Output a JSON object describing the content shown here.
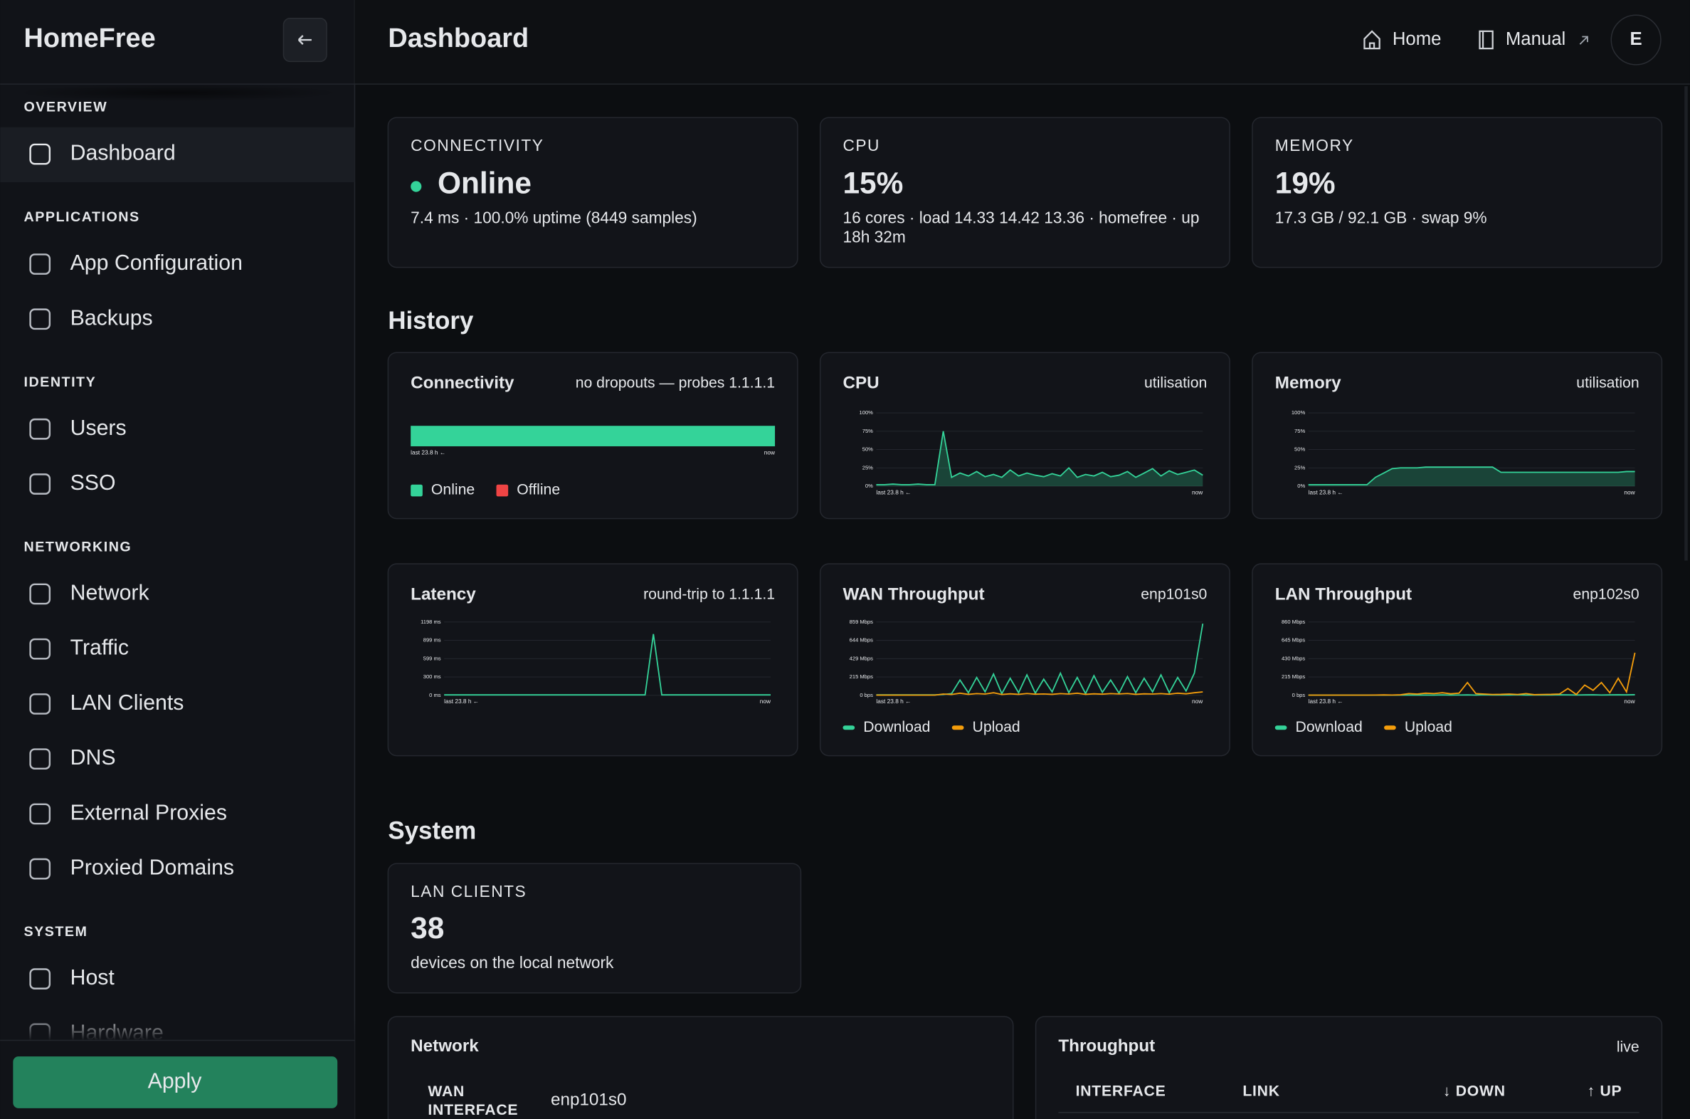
{
  "sidebar": {
    "brand": "HomeFree",
    "sections": [
      {
        "title": "OVERVIEW",
        "items": [
          {
            "label": "Dashboard",
            "active": true
          }
        ]
      },
      {
        "title": "APPLICATIONS",
        "items": [
          {
            "label": "App Configuration"
          },
          {
            "label": "Backups"
          }
        ]
      },
      {
        "title": "IDENTITY",
        "items": [
          {
            "label": "Users"
          },
          {
            "label": "SSO"
          }
        ]
      },
      {
        "title": "NETWORKING",
        "items": [
          {
            "label": "Network"
          },
          {
            "label": "Traffic"
          },
          {
            "label": "LAN Clients"
          },
          {
            "label": "DNS"
          },
          {
            "label": "External Proxies"
          },
          {
            "label": "Proxied Domains"
          }
        ]
      },
      {
        "title": "SYSTEM",
        "items": [
          {
            "label": "Host"
          },
          {
            "label": "Hardware"
          }
        ]
      }
    ],
    "apply": "Apply"
  },
  "header": {
    "title": "Dashboard",
    "links": [
      "Home",
      "Manual"
    ],
    "avatar": "E"
  },
  "stats": [
    {
      "label": "CONNECTIVITY",
      "value": "Online",
      "color": "#34d399",
      "detail": "7.4 ms · 100.0% uptime (8449 samples)"
    },
    {
      "label": "CPU",
      "value": "15%",
      "detail": "16 cores · load 14.33 14.42 13.36 · homefree · up 18h 32m"
    },
    {
      "label": "MEMORY",
      "value": "19%",
      "detail": "17.3 GB / 92.1 GB · swap 9%"
    }
  ],
  "history": {
    "title": "History",
    "panels": [
      {
        "title": "Connectivity",
        "subtitle": "no dropouts — probes 1.1.1.1",
        "chart": {
          "type": "bar",
          "x_labels": [
            "last 23.8 h ←",
            "now"
          ],
          "series": [
            {
              "name": "Online",
              "color": "#34d399",
              "values": [
                100
              ]
            },
            {
              "name": "Offline",
              "color": "#ef4444",
              "values": [
                0
              ]
            }
          ]
        }
      },
      {
        "title": "CPU",
        "subtitle": "utilisation",
        "chart": {
          "type": "area",
          "x_labels": [
            "last 23.8 h ←",
            "now"
          ],
          "ylim": [
            0,
            100
          ],
          "yticks": [
            {
              "value": 0,
              "label": "0%"
            },
            {
              "value": 25,
              "label": "25%"
            },
            {
              "value": 50,
              "label": "50%"
            },
            {
              "value": 75,
              "label": "75%"
            },
            {
              "value": 100,
              "label": "100%"
            }
          ],
          "series": [
            {
              "color": "#34d399",
              "values": [
                2,
                2,
                3,
                2,
                2,
                3,
                2,
                2,
                75,
                12,
                18,
                14,
                20,
                13,
                16,
                12,
                22,
                14,
                18,
                15,
                13,
                17,
                14,
                25,
                12,
                16,
                14,
                19,
                13,
                15,
                20,
                12,
                18,
                24,
                14,
                21,
                16,
                19,
                22,
                15
              ]
            }
          ]
        }
      },
      {
        "title": "Memory",
        "subtitle": "utilisation",
        "chart": {
          "type": "area",
          "x_labels": [
            "last 23.8 h ←",
            "now"
          ],
          "ylim": [
            0,
            100
          ],
          "yticks": [
            {
              "value": 0,
              "label": "0%"
            },
            {
              "value": 25,
              "label": "25%"
            },
            {
              "value": 50,
              "label": "50%"
            },
            {
              "value": 75,
              "label": "75%"
            },
            {
              "value": 100,
              "label": "100%"
            }
          ],
          "series": [
            {
              "color": "#34d399",
              "values": [
                2,
                2,
                2,
                2,
                2,
                2,
                2,
                2,
                12,
                18,
                24,
                25,
                25,
                25,
                26,
                26,
                26,
                26,
                26,
                26,
                26,
                26,
                26,
                19,
                19,
                19,
                19,
                19,
                19,
                19,
                19,
                19,
                19,
                19,
                19,
                19,
                19,
                19,
                20,
                20
              ]
            }
          ]
        }
      },
      {
        "title": "Latency",
        "subtitle": "round-trip to 1.1.1.1",
        "chart": {
          "type": "line",
          "x_labels": [
            "last 23.8 h ←",
            "now"
          ],
          "ylim": [
            0,
            1198
          ],
          "yticks": [
            {
              "value": 0,
              "label": "0 ms"
            },
            {
              "value": 300,
              "label": "300 ms"
            },
            {
              "value": 599,
              "label": "599 ms"
            },
            {
              "value": 899,
              "label": "899 ms"
            },
            {
              "value": 1198,
              "label": "1198 ms"
            }
          ],
          "series": [
            {
              "color": "#34d399",
              "values": [
                7,
                7,
                7,
                7,
                7,
                7,
                7,
                7,
                7,
                7,
                7,
                7,
                7,
                7,
                7,
                7,
                7,
                7,
                7,
                7,
                7,
                7,
                7,
                7,
                7,
                1000,
                7,
                7,
                7,
                7,
                7,
                7,
                7,
                7,
                7,
                7,
                7,
                7,
                7,
                7
              ]
            }
          ]
        }
      },
      {
        "title": "WAN Throughput",
        "subtitle": "enp101s0",
        "chart": {
          "type": "line",
          "x_labels": [
            "last 23.8 h ←",
            "now"
          ],
          "ylim": [
            0,
            859
          ],
          "yticks": [
            {
              "value": 0,
              "label": "0 bps"
            },
            {
              "value": 215,
              "label": "215 Mbps"
            },
            {
              "value": 429,
              "label": "429 Mbps"
            },
            {
              "value": 644,
              "label": "644 Mbps"
            },
            {
              "value": 859,
              "label": "859 Mbps"
            }
          ],
          "series": [
            {
              "name": "Download",
              "color": "#34d399",
              "values": [
                5,
                5,
                5,
                5,
                5,
                5,
                5,
                5,
                10,
                20,
                180,
                30,
                210,
                40,
                250,
                20,
                200,
                30,
                240,
                25,
                190,
                40,
                260,
                30,
                210,
                20,
                230,
                35,
                180,
                25,
                220,
                30,
                200,
                40,
                240,
                30,
                210,
                50,
                260,
                840
              ]
            },
            {
              "name": "Upload",
              "color": "#f59e0b",
              "values": [
                3,
                3,
                3,
                3,
                3,
                3,
                3,
                3,
                15,
                10,
                25,
                12,
                20,
                15,
                30,
                10,
                18,
                12,
                22,
                14,
                16,
                12,
                20,
                15,
                25,
                12,
                18,
                14,
                20,
                16,
                22,
                12,
                18,
                15,
                20,
                14,
                25,
                18,
                30,
                40
              ]
            }
          ]
        }
      },
      {
        "title": "LAN Throughput",
        "subtitle": "enp102s0",
        "chart": {
          "type": "line",
          "x_labels": [
            "last 23.8 h ←",
            "now"
          ],
          "ylim": [
            0,
            860
          ],
          "yticks": [
            {
              "value": 0,
              "label": "0 bps"
            },
            {
              "value": 215,
              "label": "215 Mbps"
            },
            {
              "value": 430,
              "label": "430 Mbps"
            },
            {
              "value": 645,
              "label": "645 Mbps"
            },
            {
              "value": 860,
              "label": "860 Mbps"
            }
          ],
          "series": [
            {
              "name": "Download",
              "color": "#34d399",
              "values": [
                2,
                2,
                2,
                2,
                2,
                2,
                2,
                2,
                2,
                2,
                2,
                2,
                3,
                3,
                4,
                3,
                5,
                3,
                4,
                5,
                3,
                6,
                4,
                5,
                4,
                6,
                3,
                4,
                5,
                4,
                6,
                5,
                4,
                5,
                6,
                4,
                5,
                6,
                5,
                8
              ]
            },
            {
              "name": "Upload",
              "color": "#f59e0b",
              "values": [
                2,
                2,
                2,
                2,
                2,
                2,
                3,
                3,
                4,
                5,
                4,
                6,
                20,
                15,
                25,
                20,
                30,
                18,
                25,
                150,
                20,
                15,
                10,
                12,
                15,
                10,
                20,
                8,
                10,
                12,
                15,
                80,
                10,
                120,
                60,
                150,
                30,
                200,
                40,
                500
              ]
            }
          ]
        }
      }
    ]
  },
  "system": {
    "title": "System",
    "lan_clients": {
      "label": "LAN CLIENTS",
      "value": 38,
      "detail": "devices on the local network"
    },
    "network": {
      "title": "Network",
      "rows": [
        [
          "WAN INTERFACE",
          "enp101s0"
        ]
      ]
    },
    "throughput": {
      "title": "Throughput",
      "subtitle": "live",
      "columns": [
        "INTERFACE",
        "LINK",
        "↓ DOWN",
        "↑ UP"
      ]
    }
  }
}
